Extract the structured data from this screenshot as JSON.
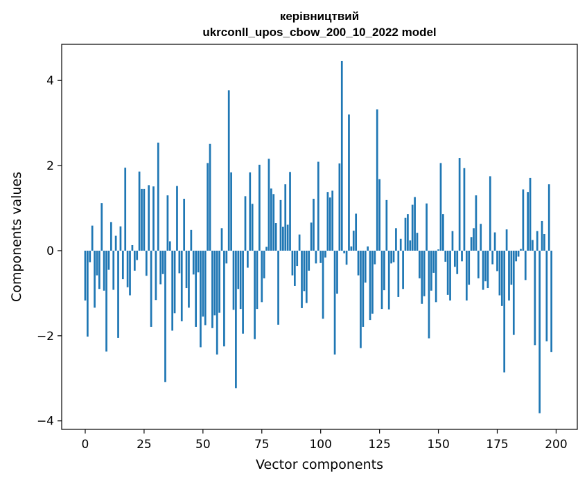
{
  "chart_data": {
    "type": "bar",
    "title": "керівництвий",
    "subtitle": "ukrconll_upos_cbow_200_10_2022 model",
    "xlabel": "Vector components",
    "ylabel": "Components values",
    "xlim": [
      -10,
      209
    ],
    "ylim": [
      -4.2,
      4.85
    ],
    "xticks": [
      0,
      25,
      50,
      75,
      100,
      125,
      150,
      175,
      200
    ],
    "yticks": [
      -4,
      -2,
      0,
      2,
      4
    ],
    "xtick_labels": [
      "0",
      "25",
      "50",
      "75",
      "100",
      "125",
      "150",
      "175",
      "200"
    ],
    "ytick_labels": [
      "−4",
      "−2",
      "0",
      "2",
      "4"
    ],
    "grid": false,
    "bar_color": "#1f77b4",
    "x_start": 0,
    "values": [
      -1.17,
      -2.02,
      -0.27,
      0.59,
      -1.34,
      -0.58,
      -0.9,
      1.12,
      -0.94,
      -2.37,
      -0.45,
      0.67,
      -0.92,
      0.35,
      -2.05,
      0.57,
      -0.67,
      1.95,
      -0.86,
      -1.05,
      0.13,
      -0.47,
      -0.22,
      1.86,
      1.45,
      1.45,
      -0.59,
      1.54,
      -1.79,
      1.51,
      -1.16,
      2.54,
      -0.79,
      -0.55,
      -3.09,
      1.3,
      0.22,
      -1.88,
      -1.47,
      1.52,
      -0.53,
      -1.66,
      1.22,
      -0.88,
      -1.34,
      0.49,
      -0.56,
      -1.79,
      -0.51,
      -2.27,
      -1.55,
      -1.75,
      2.06,
      2.51,
      -1.82,
      -1.52,
      -2.44,
      -1.46,
      0.53,
      -2.25,
      -0.3,
      3.77,
      1.84,
      -1.39,
      -3.23,
      -0.9,
      -1.37,
      -1.95,
      1.28,
      -0.4,
      1.84,
      1.1,
      -2.08,
      -1.37,
      2.02,
      -1.21,
      -0.65,
      0.09,
      2.16,
      1.46,
      1.33,
      0.65,
      -1.74,
      1.19,
      0.56,
      1.56,
      0.61,
      1.85,
      -0.58,
      -0.83,
      -0.36,
      0.38,
      -1.35,
      -0.95,
      -1.23,
      -0.47,
      0.66,
      1.22,
      -0.3,
      2.09,
      -0.29,
      -1.6,
      -0.16,
      1.38,
      1.25,
      1.41,
      -2.44,
      -1.01,
      2.05,
      4.46,
      -0.06,
      -0.33,
      3.2,
      0.1,
      0.47,
      0.87,
      -0.58,
      -2.29,
      -1.79,
      -0.75,
      0.1,
      -1.63,
      -1.48,
      -0.32,
      3.32,
      1.68,
      -1.37,
      -0.93,
      1.19,
      -1.38,
      -0.3,
      -0.27,
      0.53,
      -1.09,
      0.28,
      -0.9,
      0.77,
      0.86,
      0.24,
      1.08,
      1.26,
      0.42,
      -0.65,
      -1.25,
      -1.07,
      1.11,
      -2.06,
      -0.94,
      -0.52,
      -1.21,
      0.03,
      2.06,
      0.86,
      -0.26,
      -1.04,
      -1.17,
      0.46,
      -0.38,
      -0.55,
      2.18,
      -0.25,
      1.94,
      -1.17,
      -0.8,
      0.32,
      0.53,
      1.3,
      -0.65,
      0.63,
      -0.92,
      -0.72,
      -0.88,
      1.75,
      -0.32,
      0.43,
      -0.48,
      -1.05,
      -1.3,
      -2.86,
      0.5,
      -1.17,
      -0.8,
      -1.98,
      -0.25,
      -0.14,
      0.04,
      1.44,
      -0.69,
      1.38,
      1.71,
      0.25,
      -2.22,
      0.46,
      -3.82,
      0.7,
      0.39,
      -2.13,
      1.56,
      -2.38
    ]
  }
}
